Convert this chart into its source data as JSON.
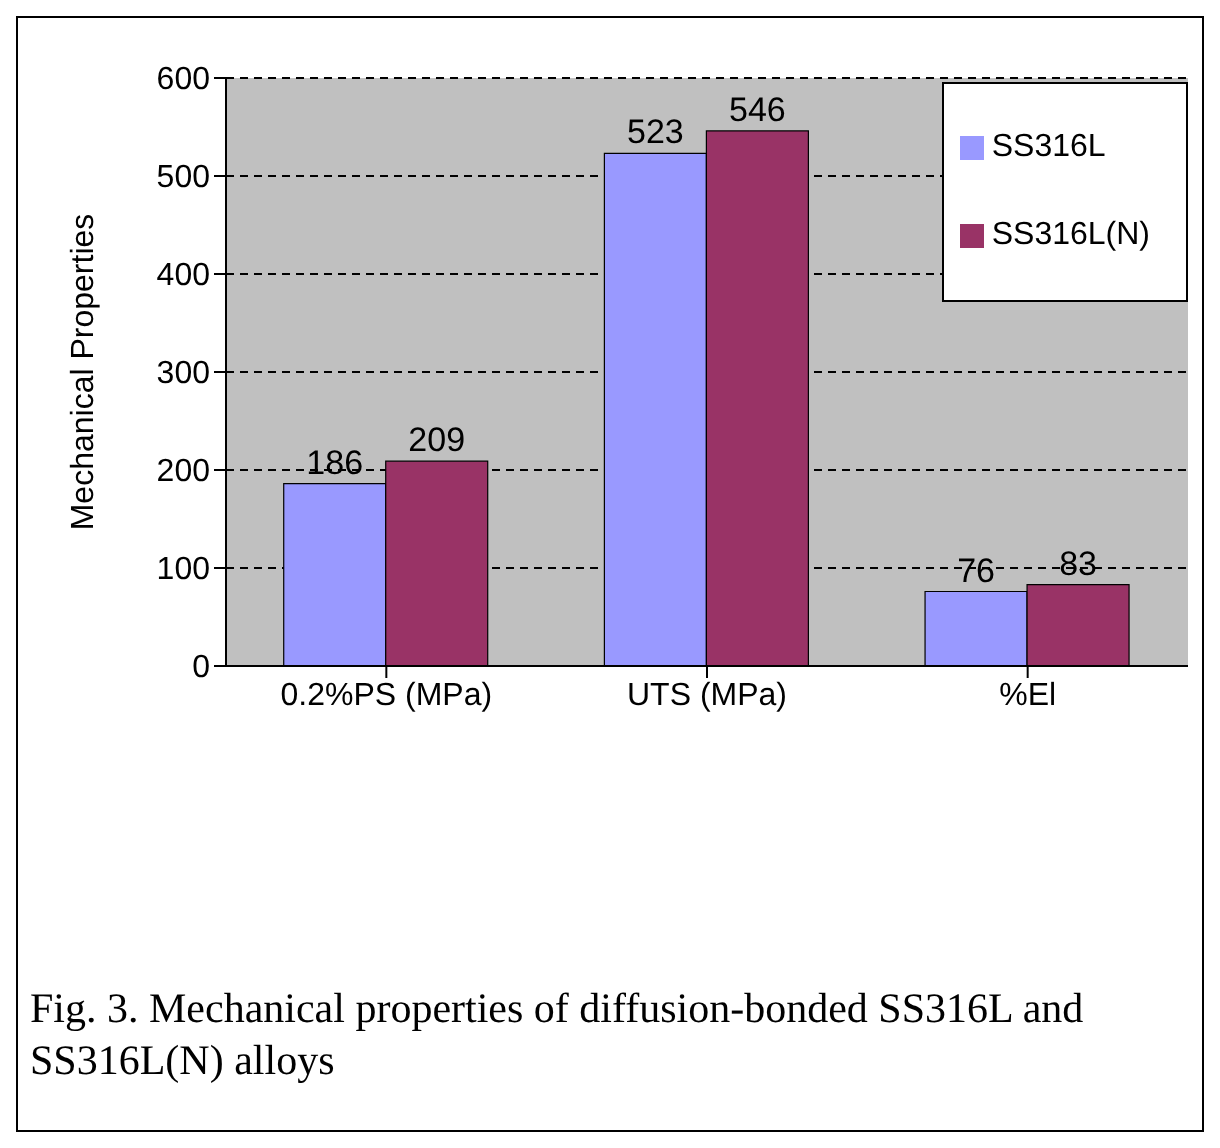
{
  "chart_data": {
    "type": "bar",
    "categories": [
      "0.2%PS (MPa)",
      "UTS (MPa)",
      "%El"
    ],
    "series": [
      {
        "name": "SS316L",
        "color": "#9999ff",
        "values": [
          186,
          523,
          76
        ]
      },
      {
        "name": "SS316L(N)",
        "color": "#993366",
        "values": [
          209,
          546,
          83
        ]
      }
    ],
    "ylabel": "Mechanical Properties",
    "ylim": [
      0,
      600
    ],
    "yticks": [
      0,
      100,
      200,
      300,
      400,
      500,
      600
    ],
    "grid": "y",
    "legend": "top right",
    "data_labels": true,
    "annotations": [
      "Fig. 3. Mechanical properties of diffusion-bonded SS316L and SS316L(N) alloys"
    ]
  }
}
